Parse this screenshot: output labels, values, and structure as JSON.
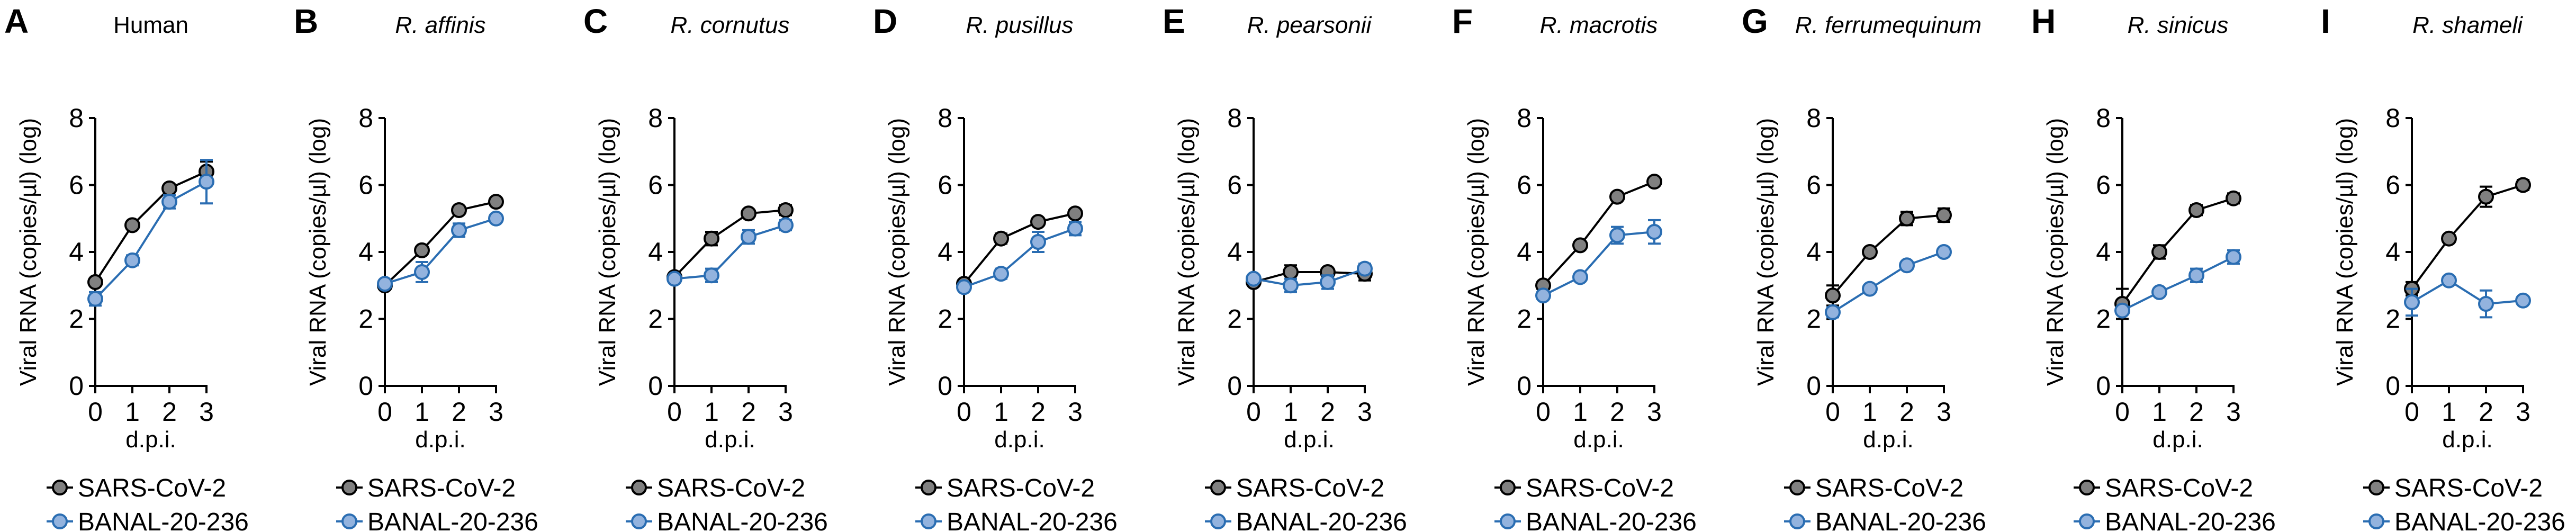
{
  "chart_data": [
    {
      "type": "line",
      "letter": "A",
      "title": "Human",
      "italic": false,
      "xlabel": "d.p.i.",
      "ylabel": "Viral RNA (copies/µl) (log)",
      "x": [
        0,
        1,
        2,
        3
      ],
      "ylim": [
        0,
        8
      ],
      "yticks": [
        0,
        2,
        4,
        6,
        8
      ],
      "series": [
        {
          "name": "SARS-CoV-2",
          "values": [
            3.1,
            4.8,
            5.9,
            6.4
          ],
          "errors": [
            0.05,
            0.05,
            0.05,
            0.3
          ]
        },
        {
          "name": "BANAL-20-236",
          "values": [
            2.6,
            3.75,
            5.5,
            6.1
          ],
          "errors": [
            0.2,
            0.15,
            0.2,
            0.65
          ]
        }
      ]
    },
    {
      "type": "line",
      "letter": "B",
      "title": "R. affinis",
      "italic": true,
      "xlabel": "d.p.i.",
      "ylabel": "Viral RNA (copies/µl) (log)",
      "x": [
        0,
        1,
        2,
        3
      ],
      "ylim": [
        0,
        8
      ],
      "yticks": [
        0,
        2,
        4,
        6,
        8
      ],
      "series": [
        {
          "name": "SARS-CoV-2",
          "values": [
            3.0,
            4.05,
            5.25,
            5.5
          ],
          "errors": [
            0.05,
            0.05,
            0.05,
            0.05
          ]
        },
        {
          "name": "BANAL-20-236",
          "values": [
            3.05,
            3.4,
            4.65,
            5.0
          ],
          "errors": [
            0.05,
            0.3,
            0.2,
            0.05
          ]
        }
      ]
    },
    {
      "type": "line",
      "letter": "C",
      "title": "R. cornutus",
      "italic": true,
      "xlabel": "d.p.i.",
      "ylabel": "Viral RNA (copies/µl) (log)",
      "x": [
        0,
        1,
        2,
        3
      ],
      "ylim": [
        0,
        8
      ],
      "yticks": [
        0,
        2,
        4,
        6,
        8
      ],
      "series": [
        {
          "name": "SARS-CoV-2",
          "values": [
            3.25,
            4.4,
            5.15,
            5.25
          ],
          "errors": [
            0.05,
            0.2,
            0.05,
            0.15
          ]
        },
        {
          "name": "BANAL-20-236",
          "values": [
            3.2,
            3.3,
            4.45,
            4.8
          ],
          "errors": [
            0.05,
            0.2,
            0.2,
            0.15
          ]
        }
      ]
    },
    {
      "type": "line",
      "letter": "D",
      "title": "R. pusillus",
      "italic": true,
      "xlabel": "d.p.i.",
      "ylabel": "Viral RNA (copies/µl) (log)",
      "x": [
        0,
        1,
        2,
        3
      ],
      "ylim": [
        0,
        8
      ],
      "yticks": [
        0,
        2,
        4,
        6,
        8
      ],
      "series": [
        {
          "name": "SARS-CoV-2",
          "values": [
            3.05,
            4.4,
            4.9,
            5.15
          ],
          "errors": [
            0.05,
            0.15,
            0.05,
            0.05
          ]
        },
        {
          "name": "BANAL-20-236",
          "values": [
            2.95,
            3.35,
            4.3,
            4.7
          ],
          "errors": [
            0.05,
            0.15,
            0.3,
            0.2
          ]
        }
      ]
    },
    {
      "type": "line",
      "letter": "E",
      "title": "R. pearsonii",
      "italic": true,
      "xlabel": "d.p.i.",
      "ylabel": "Viral RNA (copies/µl) (log)",
      "x": [
        0,
        1,
        2,
        3
      ],
      "ylim": [
        0,
        8
      ],
      "yticks": [
        0,
        2,
        4,
        6,
        8
      ],
      "series": [
        {
          "name": "SARS-CoV-2",
          "values": [
            3.1,
            3.4,
            3.4,
            3.35
          ],
          "errors": [
            0.05,
            0.2,
            0.05,
            0.2
          ]
        },
        {
          "name": "BANAL-20-236",
          "values": [
            3.2,
            3.0,
            3.1,
            3.5
          ],
          "errors": [
            0.05,
            0.2,
            0.2,
            0.15
          ]
        }
      ]
    },
    {
      "type": "line",
      "letter": "F",
      "title": "R. macrotis",
      "italic": true,
      "xlabel": "d.p.i.",
      "ylabel": "Viral RNA (copies/µl) (log)",
      "x": [
        0,
        1,
        2,
        3
      ],
      "ylim": [
        0,
        8
      ],
      "yticks": [
        0,
        2,
        4,
        6,
        8
      ],
      "series": [
        {
          "name": "SARS-CoV-2",
          "values": [
            3.0,
            4.2,
            5.65,
            6.1
          ],
          "errors": [
            0.05,
            0.05,
            0.05,
            0.05
          ]
        },
        {
          "name": "BANAL-20-236",
          "values": [
            2.7,
            3.25,
            4.5,
            4.6
          ],
          "errors": [
            0.05,
            0.05,
            0.25,
            0.35
          ]
        }
      ]
    },
    {
      "type": "line",
      "letter": "G",
      "title": "R. ferrumequinum",
      "italic": true,
      "xlabel": "d.p.i.",
      "ylabel": "Viral RNA (copies/µl) (log)",
      "x": [
        0,
        1,
        2,
        3
      ],
      "ylim": [
        0,
        8
      ],
      "yticks": [
        0,
        2,
        4,
        6,
        8
      ],
      "series": [
        {
          "name": "SARS-CoV-2",
          "values": [
            2.7,
            4.0,
            5.0,
            5.1
          ],
          "errors": [
            0.3,
            0.05,
            0.2,
            0.2
          ]
        },
        {
          "name": "BANAL-20-236",
          "values": [
            2.2,
            2.9,
            3.6,
            4.0
          ],
          "errors": [
            0.15,
            0.05,
            0.05,
            0.05
          ]
        }
      ]
    },
    {
      "type": "line",
      "letter": "H",
      "title": "R. sinicus",
      "italic": true,
      "xlabel": "d.p.i.",
      "ylabel": "Viral RNA (copies/µl) (log)",
      "x": [
        0,
        1,
        2,
        3
      ],
      "ylim": [
        0,
        8
      ],
      "yticks": [
        0,
        2,
        4,
        6,
        8
      ],
      "series": [
        {
          "name": "SARS-CoV-2",
          "values": [
            2.45,
            4.0,
            5.25,
            5.6
          ],
          "errors": [
            0.45,
            0.2,
            0.15,
            0.15
          ]
        },
        {
          "name": "BANAL-20-236",
          "values": [
            2.25,
            2.8,
            3.3,
            3.85
          ],
          "errors": [
            0.1,
            0.05,
            0.2,
            0.2
          ]
        }
      ]
    },
    {
      "type": "line",
      "letter": "I",
      "title": "R. shameli",
      "italic": true,
      "xlabel": "d.p.i.",
      "ylabel": "Viral RNA (copies/µl) (log)",
      "x": [
        0,
        1,
        2,
        3
      ],
      "ylim": [
        0,
        8
      ],
      "yticks": [
        0,
        2,
        4,
        6,
        8
      ],
      "series": [
        {
          "name": "SARS-CoV-2",
          "values": [
            2.9,
            4.4,
            5.65,
            6.0
          ],
          "errors": [
            0.2,
            0.05,
            0.3,
            0.15
          ]
        },
        {
          "name": "BANAL-20-236",
          "values": [
            2.5,
            3.15,
            2.45,
            2.55
          ],
          "errors": [
            0.4,
            0.05,
            0.4,
            0.05
          ]
        }
      ]
    }
  ],
  "colors": {
    "sars_line": "#000000",
    "sars_fill": "#808080",
    "banal_line": "#2a6db2",
    "banal_fill": "#93b3de"
  }
}
